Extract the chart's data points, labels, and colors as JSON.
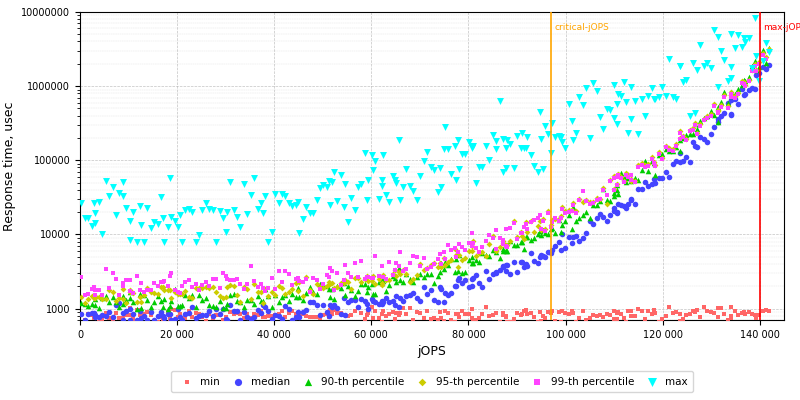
{
  "title": "",
  "xlabel": "jOPS",
  "ylabel": "Response time, usec",
  "xlim": [
    0,
    145000
  ],
  "ylim_log": [
    700,
    10000000
  ],
  "critical_jops": 97000,
  "max_jops": 140000,
  "critical_label": "critical-jOPS",
  "max_label": "max-jOPS",
  "critical_color": "#FFA500",
  "max_color": "#FF0000",
  "series": {
    "min": {
      "color": "#FF6666",
      "marker": "s",
      "markersize": 2.5,
      "label": "min"
    },
    "median": {
      "color": "#4444FF",
      "marker": "o",
      "markersize": 4,
      "label": "median"
    },
    "p90": {
      "color": "#00CC00",
      "marker": "^",
      "markersize": 4,
      "label": "90-th percentile"
    },
    "p95": {
      "color": "#CCCC00",
      "marker": "D",
      "markersize": 3,
      "label": "95-th percentile"
    },
    "p99": {
      "color": "#FF44FF",
      "marker": "s",
      "markersize": 3,
      "label": "99-th percentile"
    },
    "max": {
      "color": "#00FFFF",
      "marker": "v",
      "markersize": 5,
      "label": "max"
    }
  },
  "background_color": "#FFFFFF",
  "grid_color": "#AAAAAA"
}
